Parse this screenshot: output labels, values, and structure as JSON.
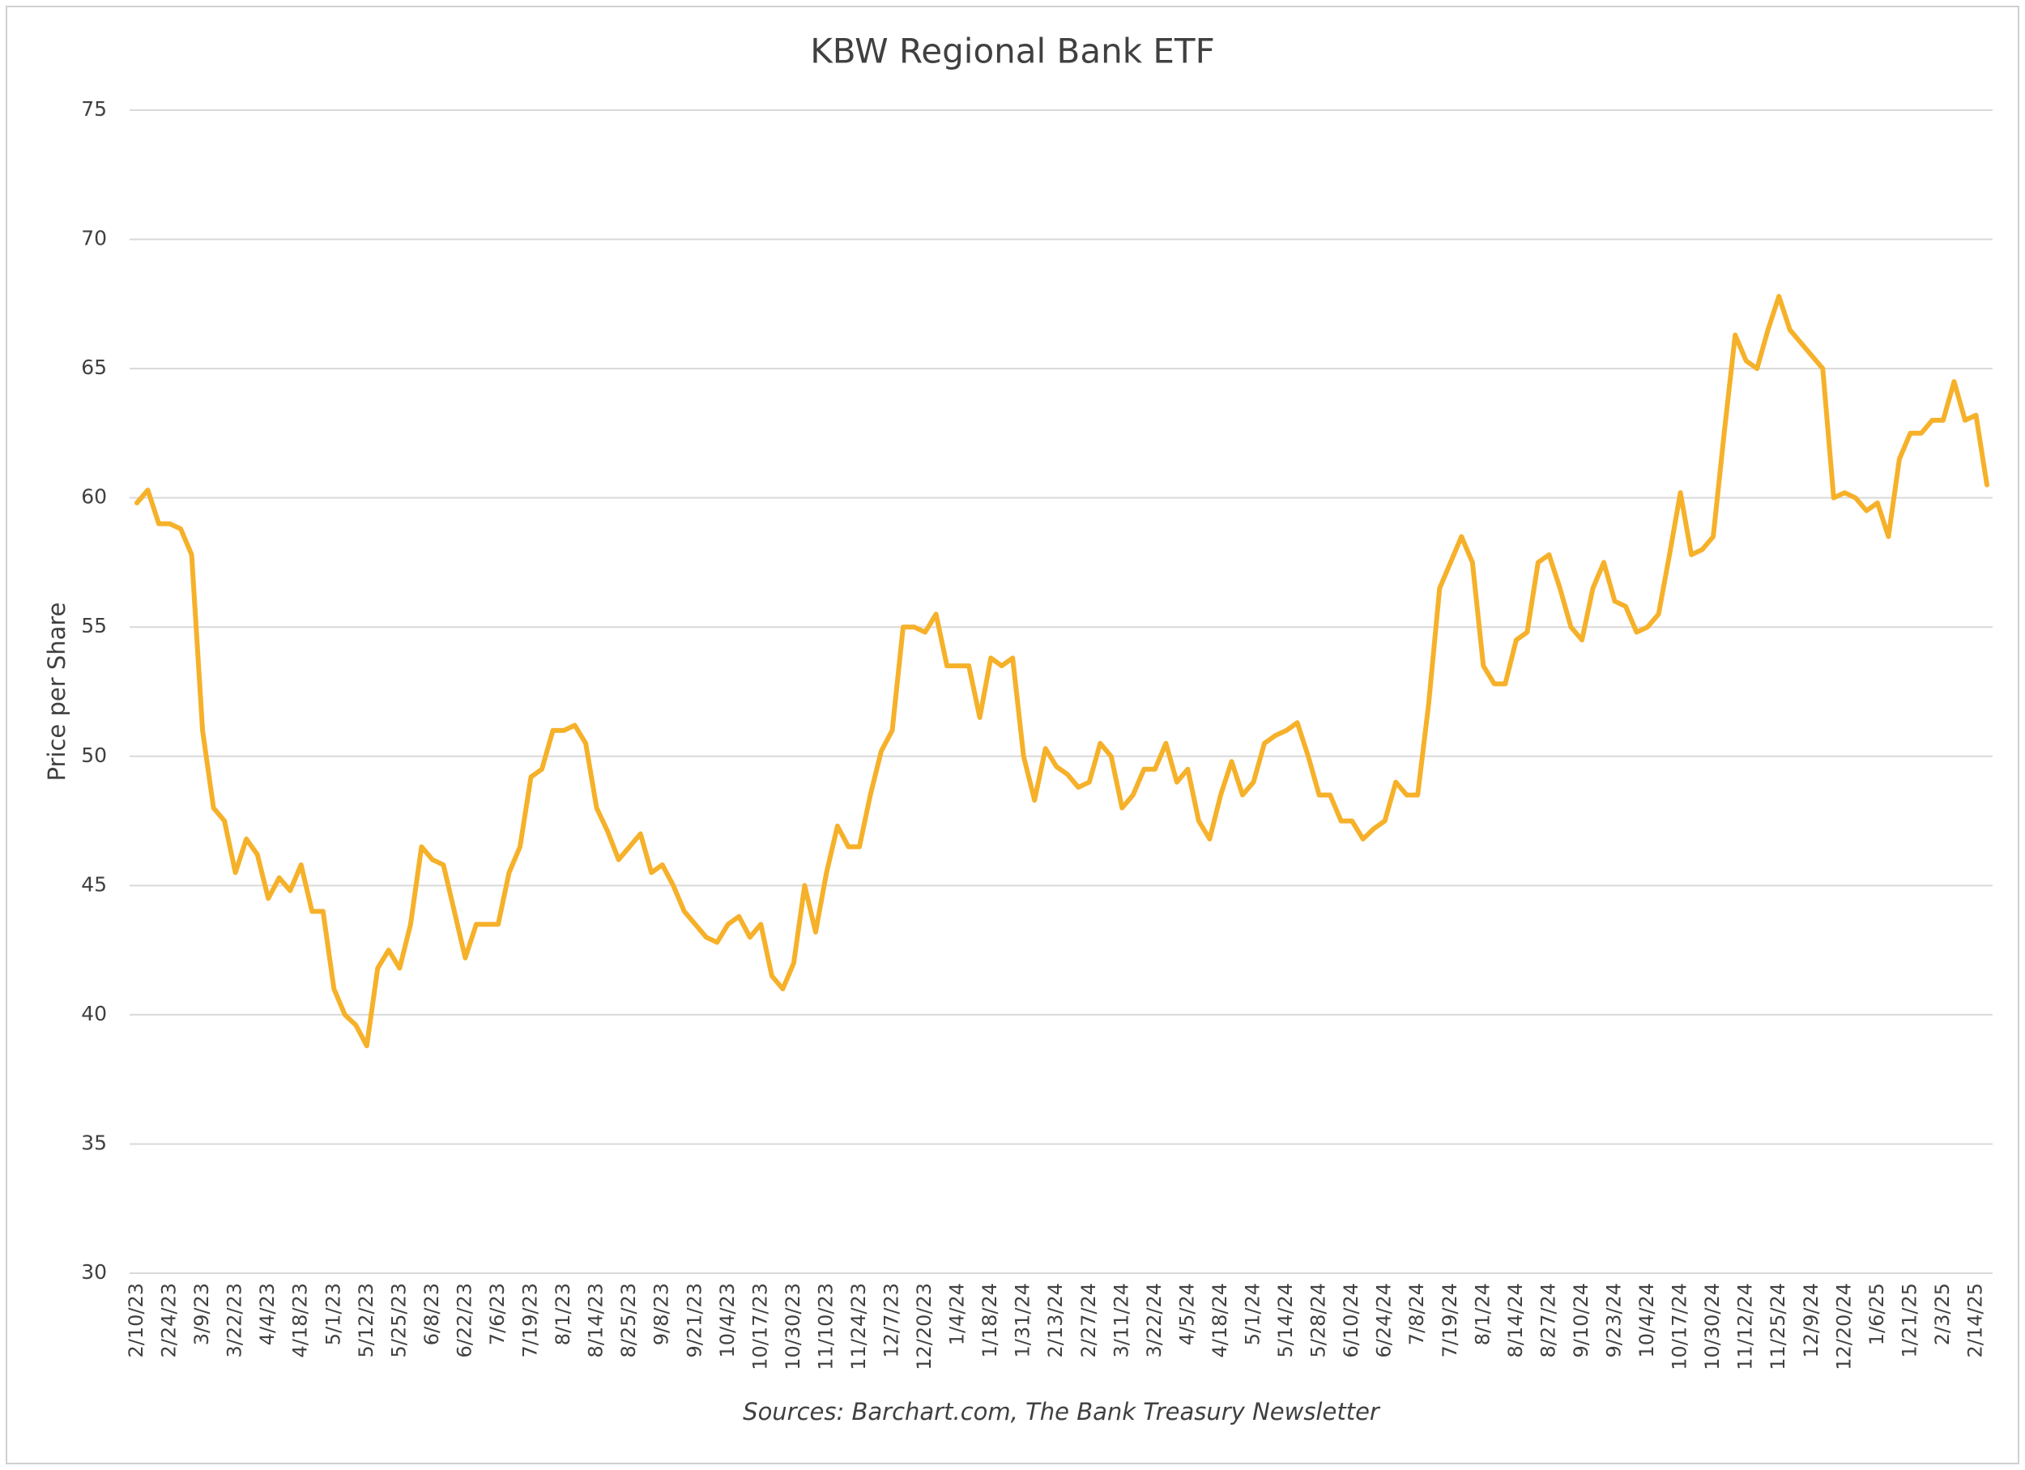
{
  "chart_data": {
    "type": "line",
    "title": "KBW Regional Bank ETF",
    "y_label": "Price per Share",
    "source": "Sources: Barchart.com, The Bank Treasury Newsletter",
    "ylim": [
      30,
      75
    ],
    "yticks": [
      30,
      35,
      40,
      45,
      50,
      55,
      60,
      65,
      70,
      75
    ],
    "grid": true,
    "categories": [
      "2/10/23",
      null,
      null,
      "2/24/23",
      null,
      null,
      "3/9/23",
      null,
      null,
      "3/22/23",
      null,
      null,
      "4/4/23",
      null,
      null,
      "4/18/23",
      null,
      null,
      "5/1/23",
      null,
      null,
      "5/12/23",
      null,
      null,
      "5/25/23",
      null,
      null,
      "6/8/23",
      null,
      null,
      "6/22/23",
      null,
      null,
      "7/6/23",
      null,
      null,
      "7/19/23",
      null,
      null,
      "8/1/23",
      null,
      null,
      "8/14/23",
      null,
      null,
      "8/25/23",
      null,
      null,
      "9/8/23",
      null,
      null,
      "9/21/23",
      null,
      null,
      "10/4/23",
      null,
      null,
      "10/17/23",
      null,
      null,
      "10/30/23",
      null,
      null,
      "11/10/23",
      null,
      null,
      "11/24/23",
      null,
      null,
      "12/7/23",
      null,
      null,
      "12/20/23",
      null,
      null,
      "1/4/24",
      null,
      null,
      "1/18/24",
      null,
      null,
      "1/31/24",
      null,
      null,
      "2/13/24",
      null,
      null,
      "2/27/24",
      null,
      null,
      "3/11/24",
      null,
      null,
      "3/22/24",
      null,
      null,
      "4/5/24",
      null,
      null,
      "4/18/24",
      null,
      null,
      "5/1/24",
      null,
      null,
      "5/14/24",
      null,
      null,
      "5/28/24",
      null,
      null,
      "6/10/24",
      null,
      null,
      "6/24/24",
      null,
      null,
      "7/8/24",
      null,
      null,
      "7/19/24",
      null,
      null,
      "8/1/24",
      null,
      null,
      "8/14/24",
      null,
      null,
      "8/27/24",
      null,
      null,
      "9/10/24",
      null,
      null,
      "9/23/24",
      null,
      null,
      "10/4/24",
      null,
      null,
      "10/17/24",
      null,
      null,
      "10/30/24",
      null,
      null,
      "11/12/24",
      null,
      null,
      "11/25/24",
      null,
      null,
      "12/9/24",
      null,
      null,
      "12/20/24",
      null,
      null,
      "1/6/25",
      null,
      null,
      "1/21/25",
      null,
      null,
      "2/3/25",
      null,
      null,
      "2/14/25",
      null
    ],
    "series": [
      {
        "name": "KBW Regional Bank ETF",
        "color": "#f6b12a",
        "values": [
          59.8,
          60.3,
          59.0,
          59.0,
          58.8,
          57.8,
          51.0,
          48.0,
          47.5,
          45.5,
          46.8,
          46.2,
          44.5,
          45.3,
          44.8,
          45.8,
          44.0,
          44.0,
          41.0,
          40.0,
          39.6,
          38.8,
          41.8,
          42.5,
          41.8,
          43.5,
          46.5,
          46.0,
          45.8,
          44.0,
          42.2,
          43.5,
          43.5,
          43.5,
          45.5,
          46.5,
          49.2,
          49.5,
          51.0,
          51.0,
          51.2,
          50.5,
          48.0,
          47.1,
          46.0,
          46.5,
          47.0,
          45.5,
          45.8,
          45.0,
          44.0,
          43.5,
          43.0,
          42.8,
          43.5,
          43.8,
          43.0,
          43.5,
          41.5,
          41.0,
          42.0,
          45.0,
          43.2,
          45.5,
          47.3,
          46.5,
          46.5,
          48.5,
          50.2,
          51.0,
          55.0,
          55.0,
          54.8,
          55.5,
          53.5,
          53.5,
          53.5,
          51.5,
          53.8,
          53.5,
          53.8,
          50.0,
          48.3,
          50.3,
          49.6,
          49.3,
          48.8,
          49.0,
          50.5,
          50.0,
          48.0,
          48.5,
          49.5,
          49.5,
          50.5,
          49.0,
          49.5,
          47.5,
          46.8,
          48.5,
          49.8,
          48.5,
          49.0,
          50.5,
          50.8,
          51.0,
          51.3,
          50.0,
          48.5,
          48.5,
          47.5,
          47.5,
          46.8,
          47.2,
          47.5,
          49.0,
          48.5,
          48.5,
          52.0,
          56.5,
          57.5,
          58.5,
          57.5,
          53.5,
          52.8,
          52.8,
          54.5,
          54.8,
          57.5,
          57.8,
          56.5,
          55.0,
          54.5,
          56.5,
          57.5,
          56.0,
          55.8,
          54.8,
          55.0,
          55.5,
          57.8,
          60.2,
          57.8,
          58.0,
          58.5,
          62.5,
          66.3,
          65.3,
          65.0,
          66.5,
          67.8,
          66.5,
          66.0,
          65.5,
          65.0,
          60.0,
          60.2,
          60.0,
          59.5,
          59.8,
          58.5,
          61.5,
          62.5,
          62.5,
          63.0,
          63.0,
          64.5,
          63.0,
          63.2,
          60.5
        ]
      }
    ]
  }
}
